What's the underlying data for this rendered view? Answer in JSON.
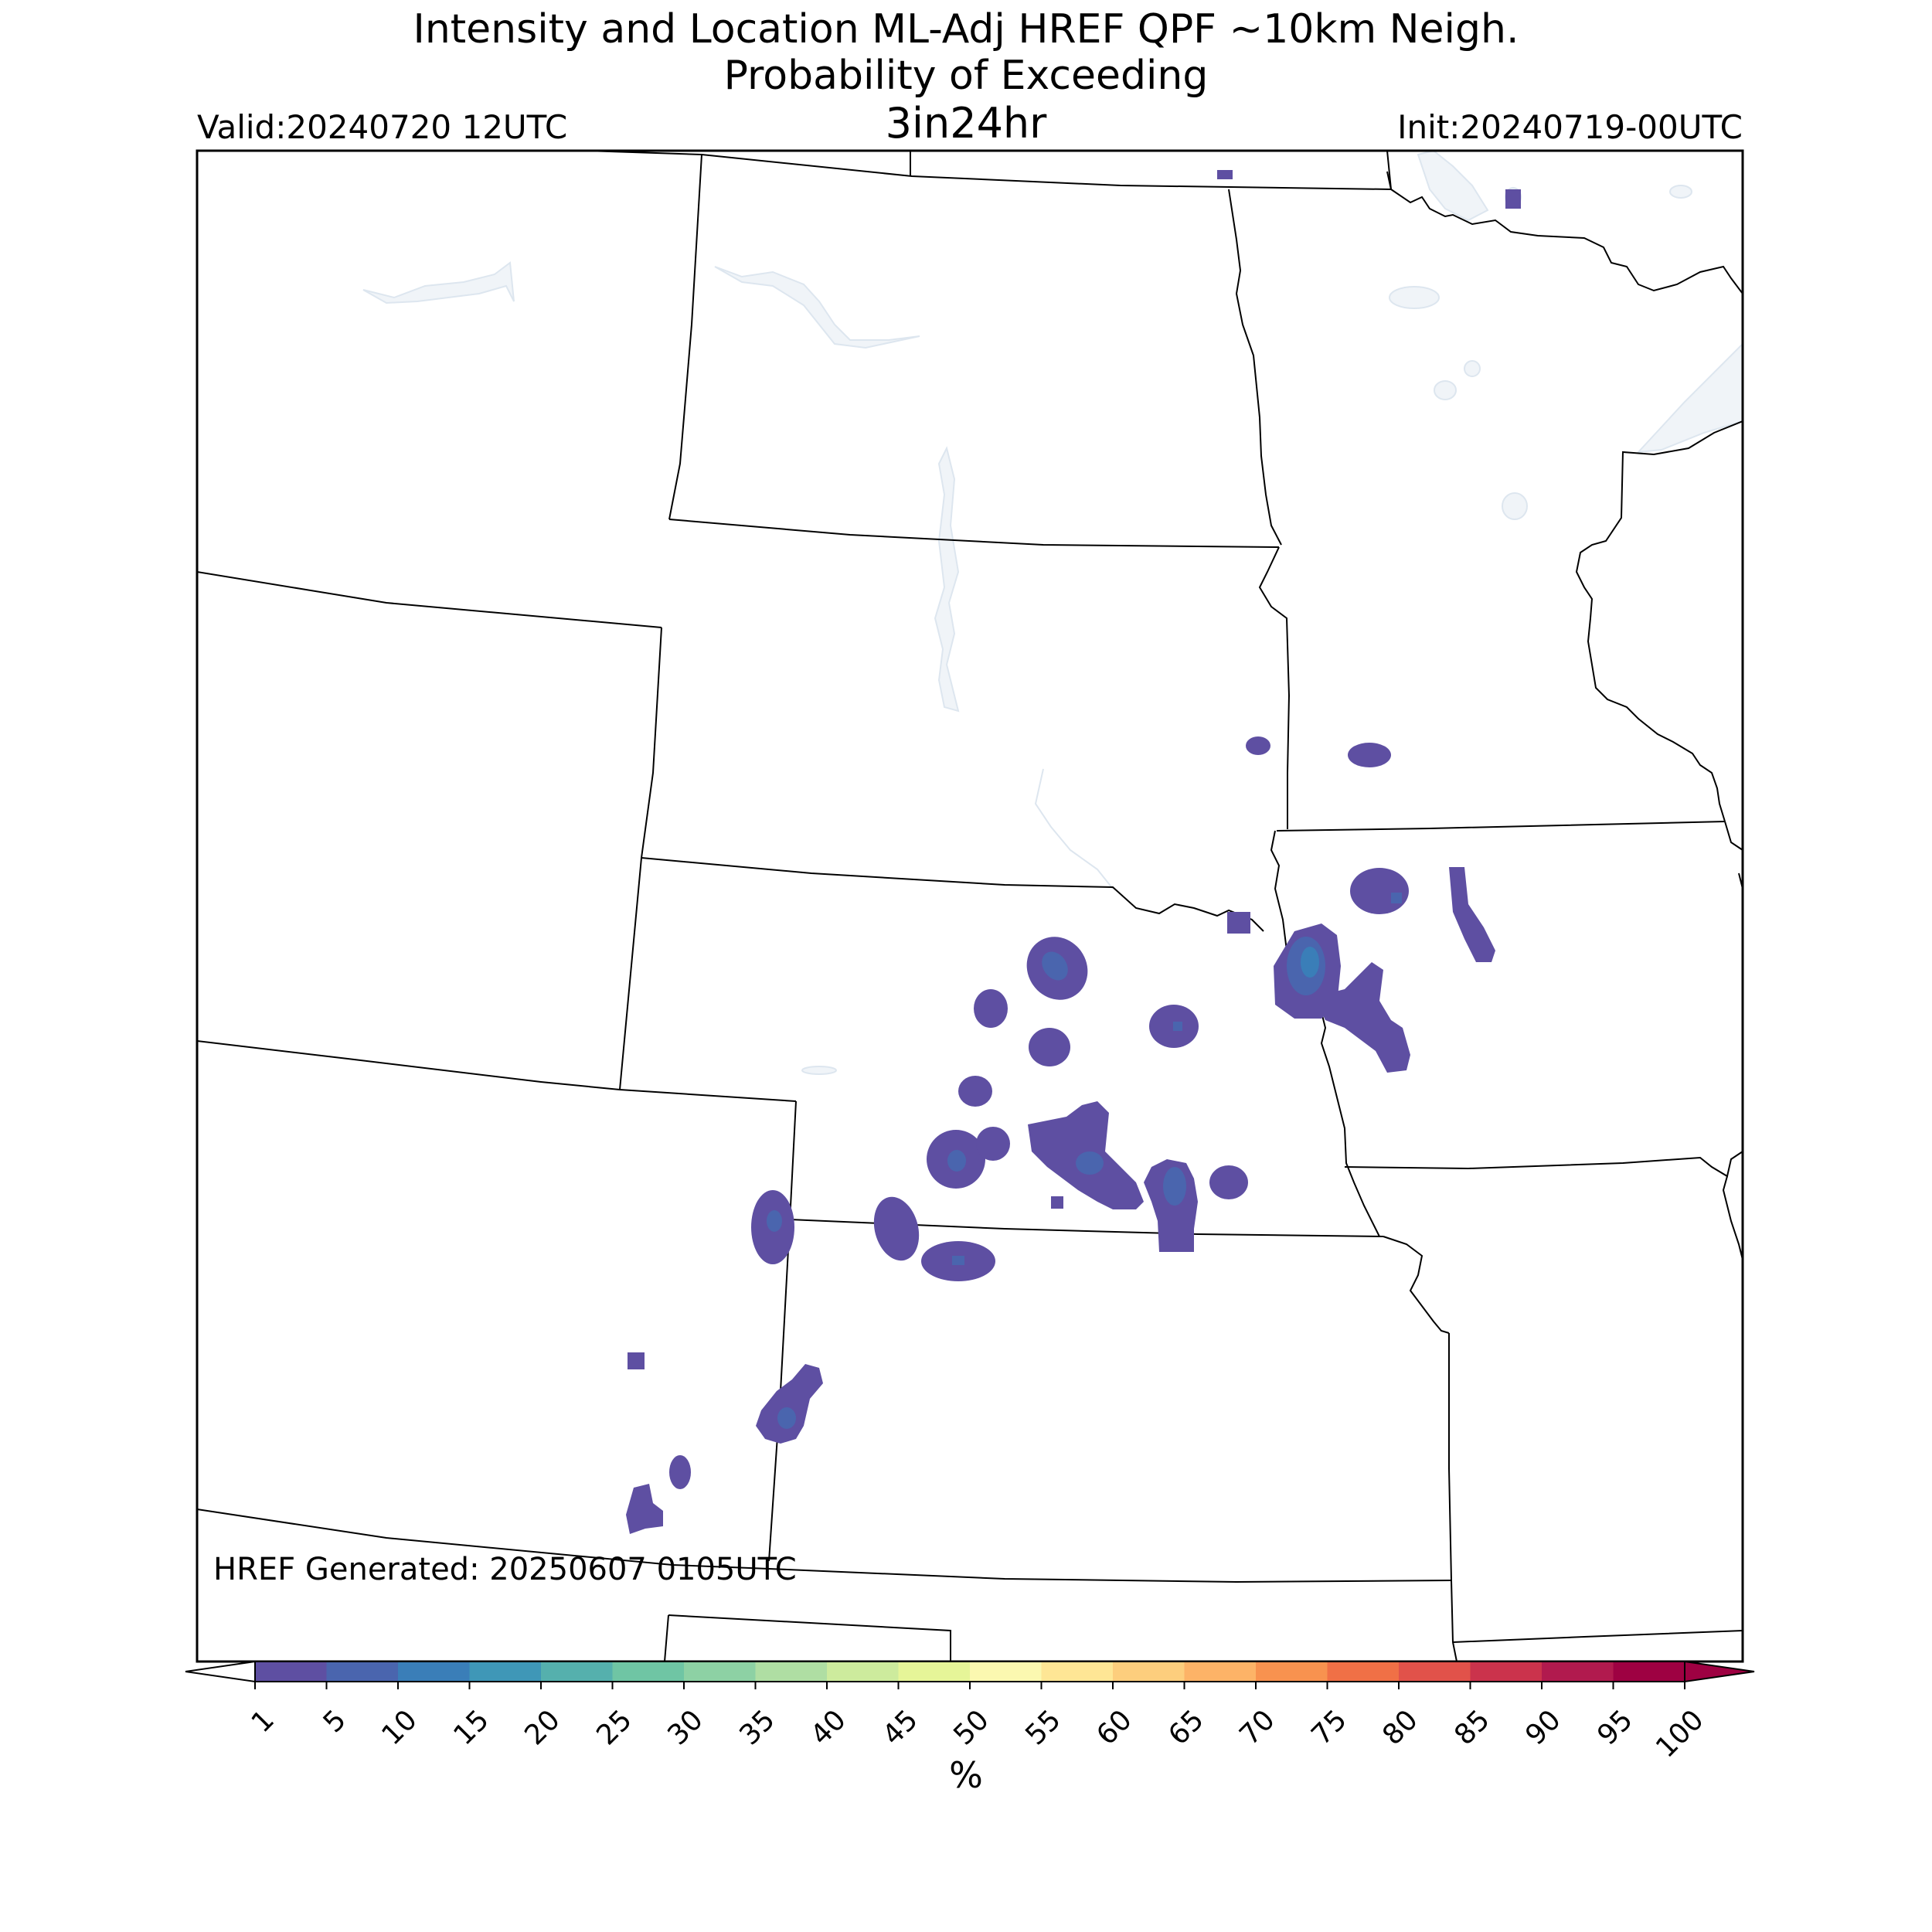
{
  "title": {
    "line1": "Intensity and Location ML-Adj HREF QPF ~10km Neigh.",
    "line2": "Probability of Exceeding",
    "line3": "3in24hr"
  },
  "valid": "Valid:20240720 12UTC",
  "init": "Init:20240719-00UTC",
  "generated": "HREF Generated: 20250607 0105UTC",
  "colorbar": {
    "unit": "%",
    "ticks": [
      "1",
      "5",
      "10",
      "15",
      "20",
      "25",
      "30",
      "35",
      "40",
      "45",
      "50",
      "55",
      "60",
      "65",
      "70",
      "75",
      "80",
      "85",
      "90",
      "95",
      "100"
    ],
    "colors": [
      "#5e4fa2",
      "#4a65ae",
      "#3a7eb8",
      "#3f97b7",
      "#55b0ad",
      "#6fc5a4",
      "#8dd1a4",
      "#afdea3",
      "#cdeb9d",
      "#e6f598",
      "#fbf8b0",
      "#fee695",
      "#fdce7d",
      "#fdb367",
      "#f8924f",
      "#f07046",
      "#e1524a",
      "#cb334c",
      "#b11a4e",
      "#9e0142"
    ],
    "over_color": "#9e0142",
    "under_color": "#ffffff"
  },
  "map": {
    "water_color": "#f0f4f8",
    "prob_color_low": "#5e4fa2",
    "prob_color_mid": "#4a65ae",
    "prob_color_high": "#3a7eb8"
  }
}
